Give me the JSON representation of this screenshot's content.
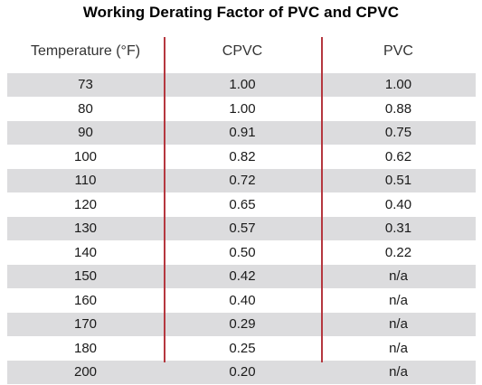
{
  "title": "Working Derating Factor of PVC and CPVC",
  "colors": {
    "divider": "#b5373f",
    "shaded_row": "#dcdcde"
  },
  "chart_data": {
    "type": "table",
    "title": "Working Derating Factor of PVC and CPVC",
    "columns": [
      "Temperature (°F)",
      "CPVC",
      "PVC"
    ],
    "rows": [
      [
        "73",
        "1.00",
        "1.00"
      ],
      [
        "80",
        "1.00",
        "0.88"
      ],
      [
        "90",
        "0.91",
        "0.75"
      ],
      [
        "100",
        "0.82",
        "0.62"
      ],
      [
        "110",
        "0.72",
        "0.51"
      ],
      [
        "120",
        "0.65",
        "0.40"
      ],
      [
        "130",
        "0.57",
        "0.31"
      ],
      [
        "140",
        "0.50",
        "0.22"
      ],
      [
        "150",
        "0.42",
        "n/a"
      ],
      [
        "160",
        "0.40",
        "n/a"
      ],
      [
        "170",
        "0.29",
        "n/a"
      ],
      [
        "180",
        "0.25",
        "n/a"
      ],
      [
        "200",
        "0.20",
        "n/a"
      ]
    ]
  }
}
